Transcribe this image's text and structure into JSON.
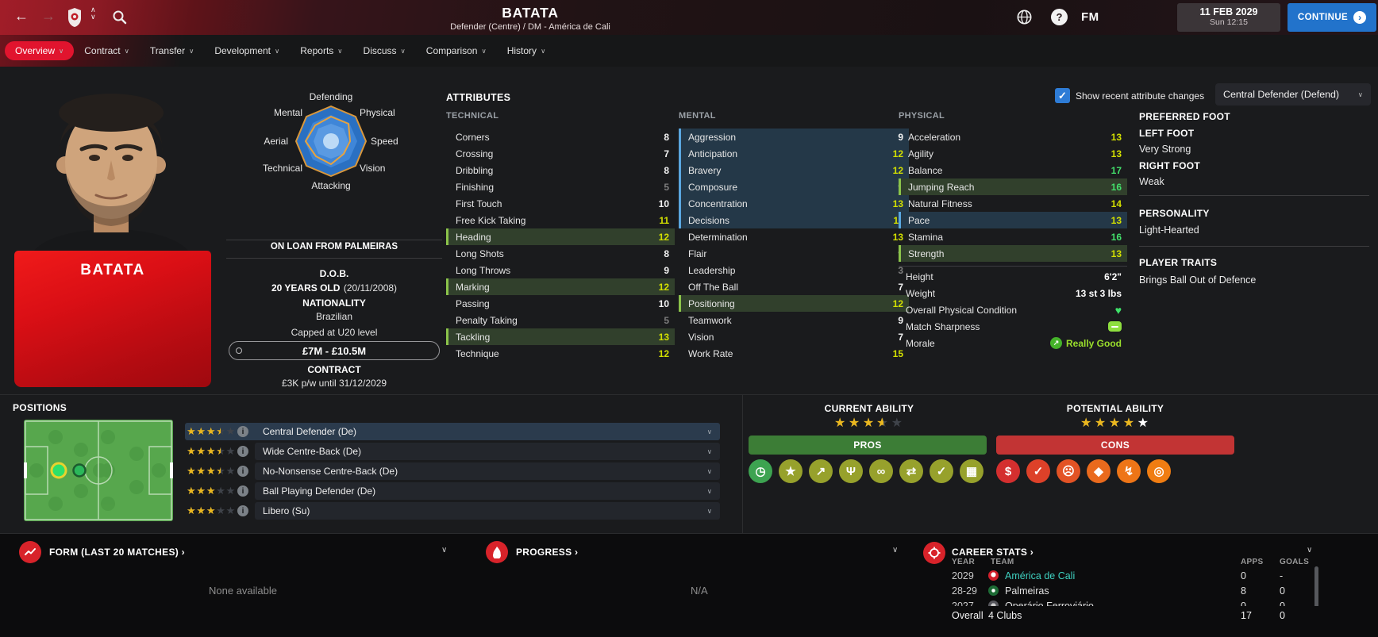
{
  "colors": {
    "accent_red": "#e1142e",
    "continue_blue": "#2273cb",
    "checkbox_blue": "#2e7cd6",
    "value_low": "#7d7d7d",
    "value_mid": "#f2f2f2",
    "value_good": "#d3e000",
    "value_high": "#43e06b",
    "hl_green_bg": "#31402c",
    "hl_green_bar": "#8bc34a",
    "hl_blue_bg": "#243848",
    "hl_blue_bar": "#5aa7e0",
    "star_gold": "#eab71f",
    "pros_green": "#3c7d36",
    "cons_red": "#c23434",
    "pros_icon": "#97a12c",
    "pros_icon_first": "#3da351",
    "cons_icon_colors": [
      "#d42f2f",
      "#dd4129",
      "#e35325",
      "#ea6a1d",
      "#ee7517",
      "#f07d12"
    ],
    "link_teal": "#3fd1c0",
    "morale_green": "#9ade2c",
    "plate_red": "#d50e14",
    "pitch_green": "#57a74d"
  },
  "topbar": {
    "back": "←",
    "forward": "→",
    "title": "BATATA",
    "subtitle": "Defender (Centre) / DM - América de Cali",
    "fm_label": "FM",
    "help_glyph": "?",
    "date": "11 FEB 2029",
    "day_time": "Sun 12:15",
    "continue_label": "CONTINUE"
  },
  "nav": {
    "tabs": [
      {
        "label": "Overview",
        "active": true
      },
      {
        "label": "Contract"
      },
      {
        "label": "Transfer"
      },
      {
        "label": "Development"
      },
      {
        "label": "Reports"
      },
      {
        "label": "Discuss"
      },
      {
        "label": "Comparison"
      },
      {
        "label": "History"
      }
    ]
  },
  "radar": {
    "labels": [
      "Defending",
      "Physical",
      "Speed",
      "Vision",
      "Attacking",
      "Technical",
      "Aerial",
      "Mental"
    ]
  },
  "player_card": {
    "name": "BATATA"
  },
  "bio": {
    "loan": "ON LOAN FROM PALMEIRAS",
    "dob_label": "D.O.B.",
    "age": "20 YEARS OLD",
    "dob": "(20/11/2008)",
    "nationality_label": "NATIONALITY",
    "nationality": "Brazilian",
    "caps": "Capped at U20 level",
    "value": "£7M - £10.5M",
    "contract_label": "CONTRACT",
    "contract": "£3K p/w until 31/12/2029"
  },
  "attributes": {
    "header": "ATTRIBUTES",
    "show_changes": "Show recent attribute changes",
    "role_filter": "Central Defender (Defend)",
    "technical": {
      "title": "TECHNICAL",
      "rows": [
        {
          "label": "Corners",
          "value": 8
        },
        {
          "label": "Crossing",
          "value": 7
        },
        {
          "label": "Dribbling",
          "value": 8
        },
        {
          "label": "Finishing",
          "value": 5
        },
        {
          "label": "First Touch",
          "value": 10
        },
        {
          "label": "Free Kick Taking",
          "value": 11
        },
        {
          "label": "Heading",
          "value": 12,
          "hl": "green"
        },
        {
          "label": "Long Shots",
          "value": 8
        },
        {
          "label": "Long Throws",
          "value": 9
        },
        {
          "label": "Marking",
          "value": 12,
          "hl": "green"
        },
        {
          "label": "Passing",
          "value": 10
        },
        {
          "label": "Penalty Taking",
          "value": 5
        },
        {
          "label": "Tackling",
          "value": 13,
          "hl": "green"
        },
        {
          "label": "Technique",
          "value": 12
        }
      ]
    },
    "mental": {
      "title": "MENTAL",
      "rows": [
        {
          "label": "Aggression",
          "value": 9,
          "hl": "blue"
        },
        {
          "label": "Anticipation",
          "value": 12,
          "hl": "blue"
        },
        {
          "label": "Bravery",
          "value": 12,
          "hl": "blue"
        },
        {
          "label": "Composure",
          "value": 9,
          "hl": "blue"
        },
        {
          "label": "Concentration",
          "value": 13,
          "hl": "blue"
        },
        {
          "label": "Decisions",
          "value": 11,
          "hl": "blue"
        },
        {
          "label": "Determination",
          "value": 13
        },
        {
          "label": "Flair",
          "value": 9
        },
        {
          "label": "Leadership",
          "value": 3
        },
        {
          "label": "Off The Ball",
          "value": 7
        },
        {
          "label": "Positioning",
          "value": 12,
          "hl": "green"
        },
        {
          "label": "Teamwork",
          "value": 9
        },
        {
          "label": "Vision",
          "value": 7
        },
        {
          "label": "Work Rate",
          "value": 15
        }
      ]
    },
    "physical": {
      "title": "PHYSICAL",
      "rows": [
        {
          "label": "Acceleration",
          "value": 13
        },
        {
          "label": "Agility",
          "value": 13
        },
        {
          "label": "Balance",
          "value": 17
        },
        {
          "label": "Jumping Reach",
          "value": 16,
          "hl": "green"
        },
        {
          "label": "Natural Fitness",
          "value": 14
        },
        {
          "label": "Pace",
          "value": 13,
          "hl": "blue"
        },
        {
          "label": "Stamina",
          "value": 16
        },
        {
          "label": "Strength",
          "value": 13,
          "hl": "green"
        }
      ]
    },
    "extras": [
      {
        "label": "Height",
        "value": "6'2\""
      },
      {
        "label": "Weight",
        "value": "13 st 3 lbs"
      },
      {
        "label": "Overall Physical Condition",
        "icon": "heart-icon"
      },
      {
        "label": "Match Sharpness",
        "icon": "sharpness-icon"
      },
      {
        "label": "Morale",
        "icon": "morale-icon",
        "value": "Really Good"
      }
    ]
  },
  "foot_panel": {
    "title": "PREFERRED FOOT",
    "left_label": "LEFT FOOT",
    "left_value": "Very Strong",
    "right_label": "RIGHT FOOT",
    "right_value": "Weak",
    "personality_title": "PERSONALITY",
    "personality": "Light-Hearted",
    "traits_title": "PLAYER TRAITS",
    "traits": [
      "Brings Ball Out of Defence"
    ]
  },
  "positions": {
    "title": "POSITIONS",
    "roles": [
      {
        "label": "Central Defender (De)",
        "stars": 3.5,
        "selected": true
      },
      {
        "label": "Wide Centre-Back (De)",
        "stars": 3.5
      },
      {
        "label": "No-Nonsense Centre-Back (De)",
        "stars": 3.5
      },
      {
        "label": "Ball Playing Defender (De)",
        "stars": 3
      },
      {
        "label": "Libero (Su)",
        "stars": 3
      }
    ]
  },
  "ability": {
    "current_label": "CURRENT ABILITY",
    "current_stars": 3.5,
    "potential_label": "POTENTIAL ABILITY",
    "potential_gold": 4,
    "potential_white": 1,
    "pros_label": "PROS",
    "cons_label": "CONS",
    "pros_icons": [
      {
        "name": "stopwatch-icon",
        "glyph": "◷"
      },
      {
        "name": "star-icon",
        "glyph": "★"
      },
      {
        "name": "growth-icon",
        "glyph": "↗"
      },
      {
        "name": "mind-icon",
        "glyph": "Ψ"
      },
      {
        "name": "link-icon",
        "glyph": "∞"
      },
      {
        "name": "swap-arrows-icon",
        "glyph": "⇄"
      },
      {
        "name": "report-check-icon",
        "glyph": "✓"
      },
      {
        "name": "tactics-board-icon",
        "glyph": "▦"
      }
    ],
    "cons_icons": [
      {
        "name": "money-bag-icon",
        "glyph": "$"
      },
      {
        "name": "report-check-icon",
        "glyph": "✓"
      },
      {
        "name": "mask-icon",
        "glyph": "☹"
      },
      {
        "name": "price-tag-icon",
        "glyph": "◆"
      },
      {
        "name": "set-piece-icon",
        "glyph": "↯"
      },
      {
        "name": "rings-icon",
        "glyph": "◎"
      }
    ]
  },
  "form": {
    "title": "FORM (LAST 20 MATCHES) ›",
    "empty": "None available"
  },
  "progress": {
    "title": "PROGRESS ›",
    "empty": "N/A"
  },
  "career": {
    "title": "CAREER STATS ›",
    "columns": [
      "YEAR",
      "TEAM",
      "APPS",
      "GOALS"
    ],
    "rows": [
      {
        "year": "2029",
        "team": "América de Cali",
        "apps": "0",
        "goals": "-",
        "badge": "america",
        "link": true
      },
      {
        "year": "28-29",
        "team": "Palmeiras",
        "apps": "8",
        "goals": "0",
        "badge": "palmeiras"
      },
      {
        "year": "2027",
        "team": "Operário Ferroviário",
        "apps": "0",
        "goals": "0",
        "badge": "operario"
      }
    ],
    "overall": {
      "year": "Overall",
      "team": "4 Clubs",
      "apps": "17",
      "goals": "0"
    }
  }
}
